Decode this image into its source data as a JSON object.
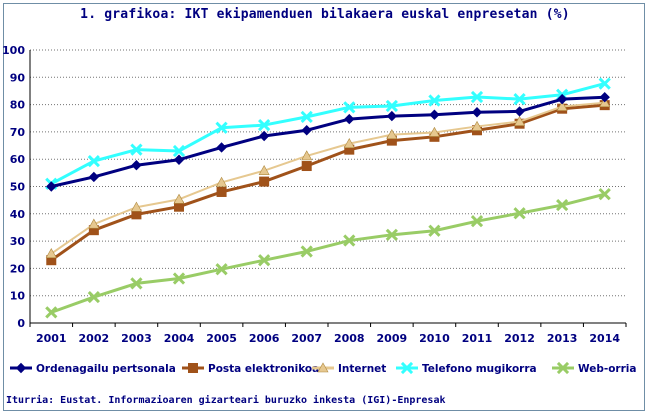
{
  "title": "1. grafikoa: IKT ekipamenduen bilakaera euskal enpresetan (%)",
  "source": "Iturria: Eustat. Informazioaren gizarteari buruzko inkesta (IGI)-Enpresak",
  "colors": {
    "axis_text": "#000080",
    "grid": "#000000",
    "ordenagailu": "#000080",
    "posta": "#a0521a",
    "internet": "#e6c890",
    "telefono": "#33ffff",
    "web": "#99cc66"
  },
  "chart_data": {
    "type": "line",
    "title": "1. grafikoa: IKT ekipamenduen bilakaera euskal enpresetan (%)",
    "xlabel": "",
    "ylabel": "",
    "x": [
      "2001",
      "2002",
      "2003",
      "2004",
      "2005",
      "2006",
      "2007",
      "2008",
      "2009",
      "2010",
      "2011",
      "2012",
      "2013",
      "2014"
    ],
    "ylim": [
      0,
      100
    ],
    "yticks": [
      0,
      10,
      20,
      30,
      40,
      50,
      60,
      70,
      80,
      90,
      100
    ],
    "grid": "horizontal dotted",
    "legend": "bottom",
    "series": [
      {
        "name": "Ordenagailu pertsonala",
        "color": "#000080",
        "marker": "diamond",
        "values": [
          50.0,
          53.5,
          57.8,
          59.8,
          64.3,
          68.5,
          70.6,
          74.7,
          75.8,
          76.3,
          77.2,
          77.5,
          82.0,
          82.7
        ]
      },
      {
        "name": "Posta elektronikoa",
        "color": "#a0521a",
        "marker": "square",
        "values": [
          23.0,
          34.0,
          39.8,
          42.6,
          48.0,
          51.8,
          57.5,
          63.5,
          66.8,
          68.2,
          70.6,
          73.0,
          78.5,
          79.8
        ]
      },
      {
        "name": "Internet",
        "color": "#e6c890",
        "marker": "triangle",
        "values": [
          25.4,
          36.2,
          42.4,
          45.3,
          51.5,
          55.8,
          61.2,
          65.7,
          69.0,
          69.8,
          72.0,
          73.8,
          79.3,
          80.7
        ]
      },
      {
        "name": "Telefono mugikorra",
        "color": "#33ffff",
        "marker": "x",
        "values": [
          51.0,
          59.3,
          63.5,
          63.0,
          71.5,
          72.5,
          75.5,
          79.0,
          79.5,
          81.5,
          82.8,
          82.0,
          83.6,
          87.7
        ]
      },
      {
        "name": "Web-orria",
        "color": "#99cc66",
        "marker": "x",
        "values": [
          3.9,
          9.5,
          14.5,
          16.3,
          19.7,
          23.0,
          26.2,
          30.2,
          32.3,
          33.8,
          37.3,
          40.2,
          43.2,
          47.2
        ]
      }
    ]
  }
}
